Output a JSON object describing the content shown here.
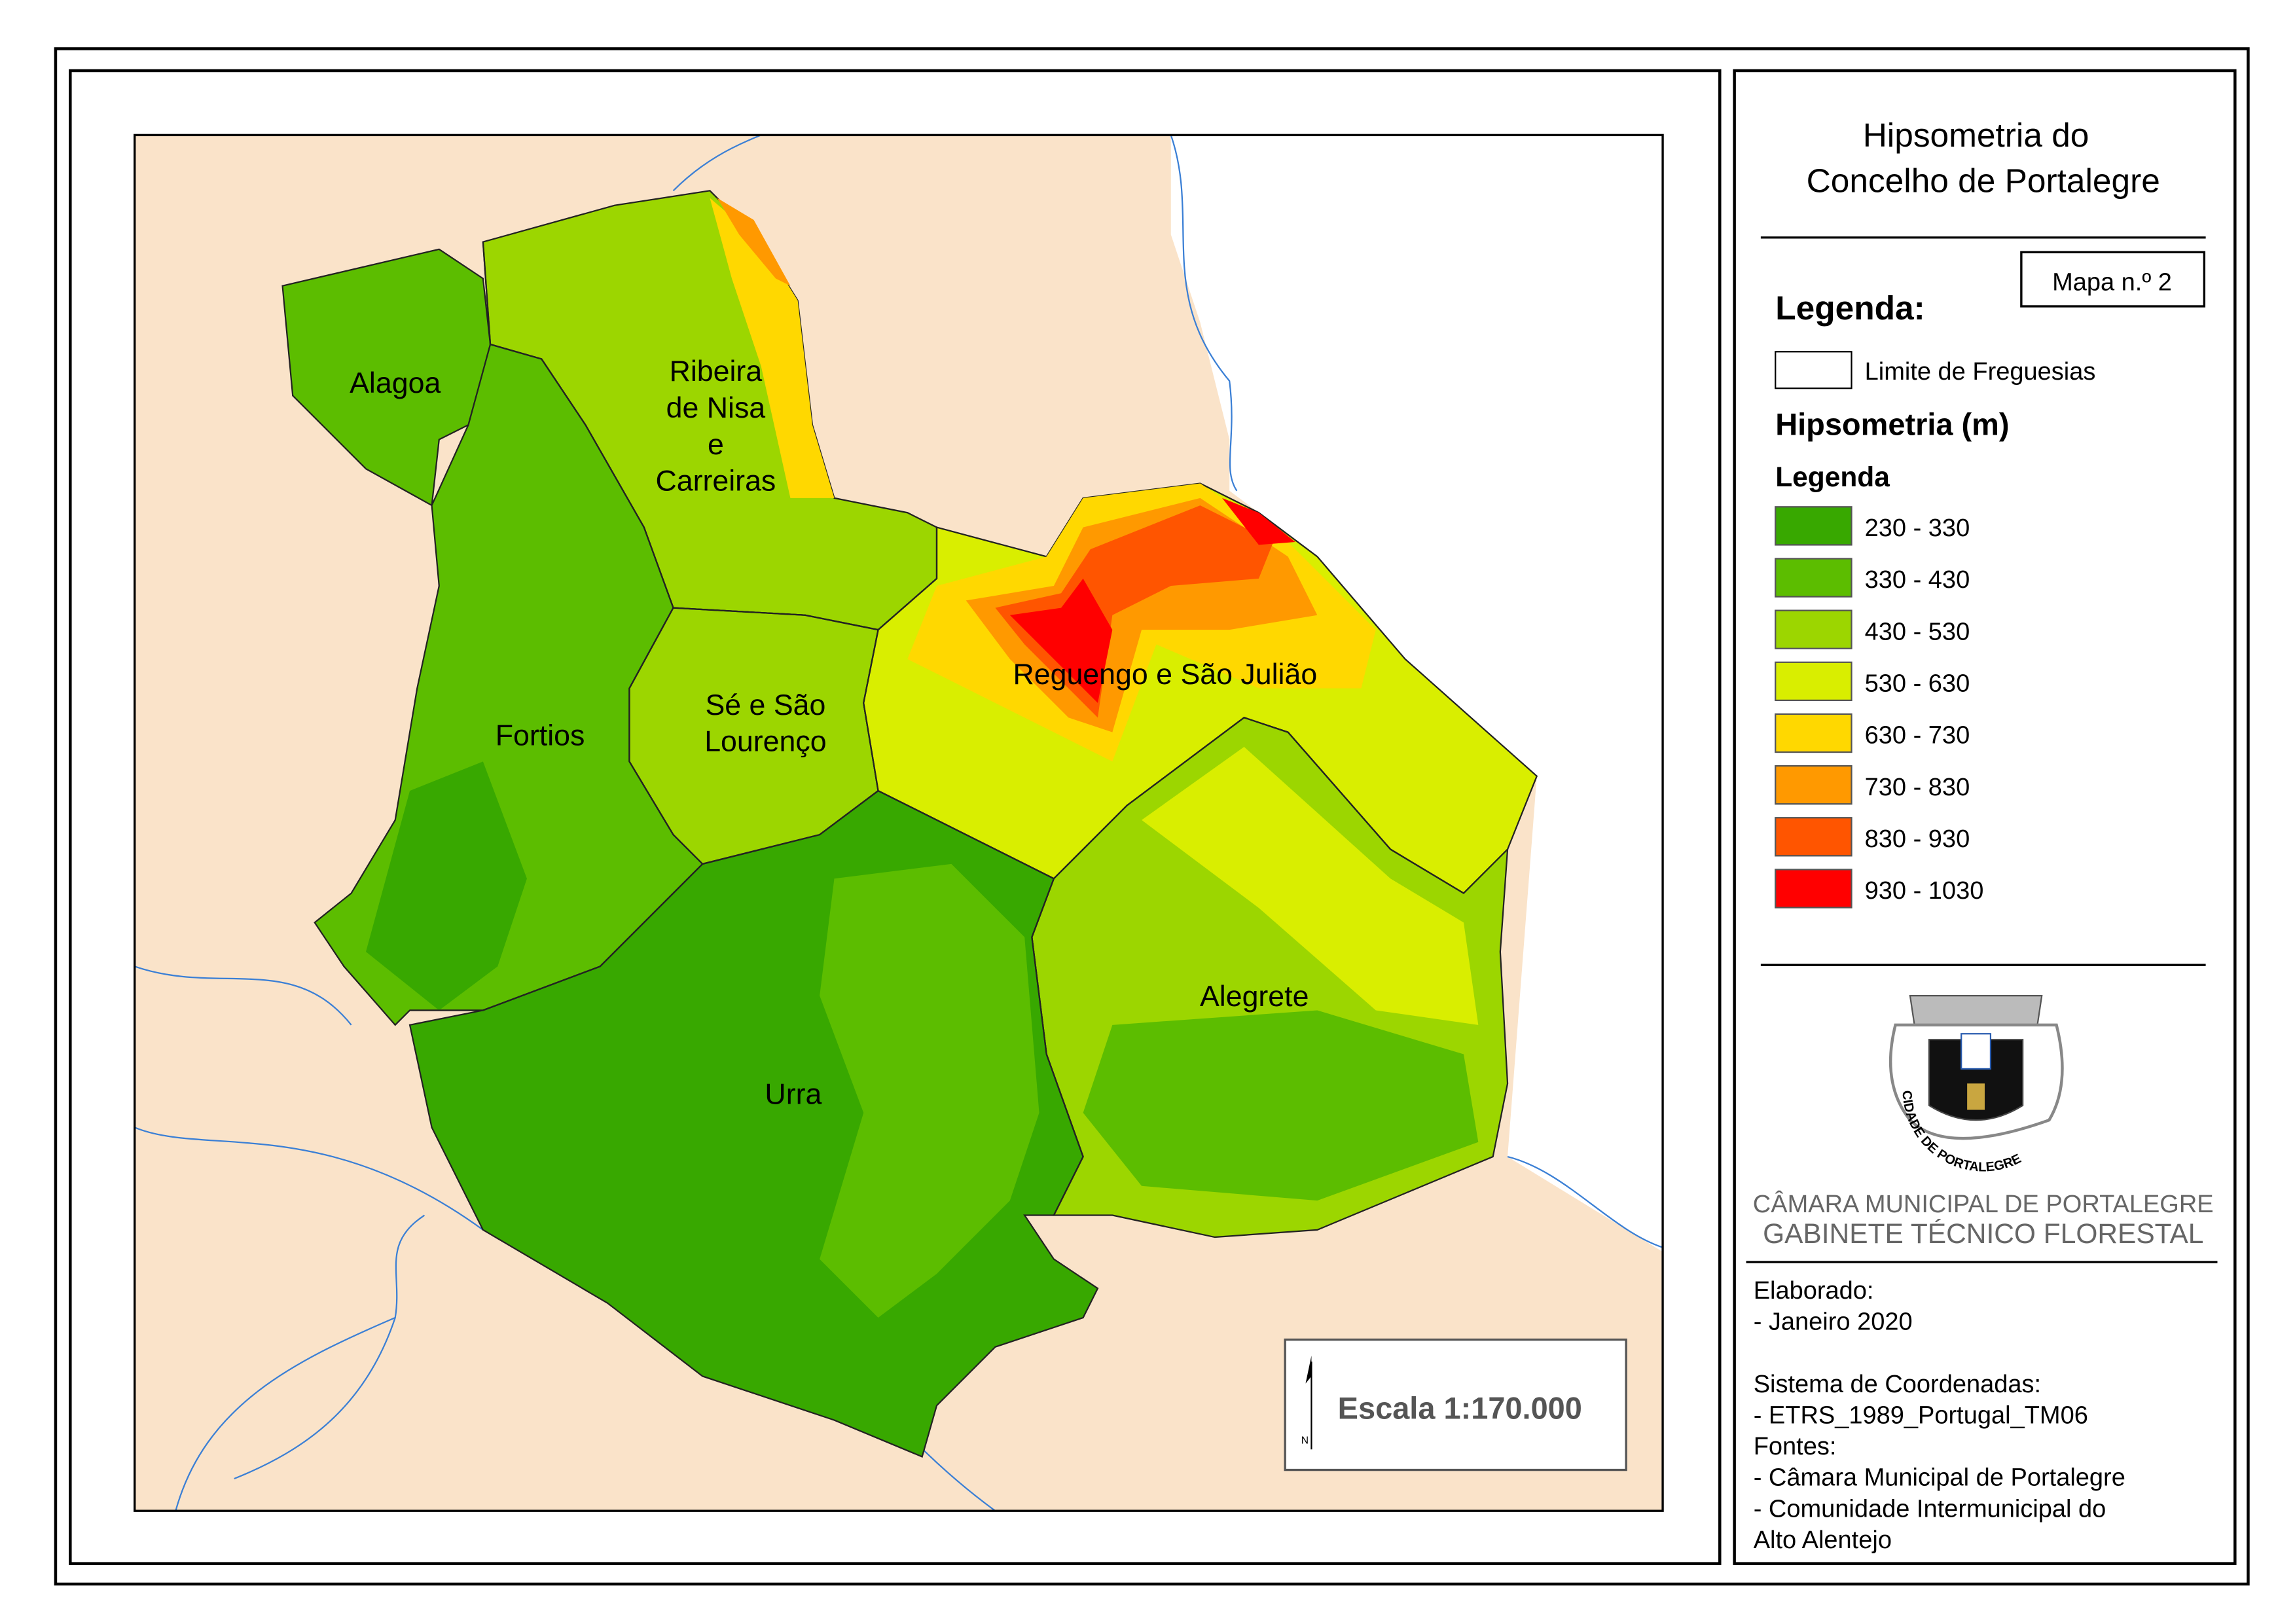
{
  "title_lines": [
    "Hipsometria do",
    "Concelho de Portalegre"
  ],
  "map_number": "Mapa n.º 2",
  "legend": {
    "heading": "Legenda:",
    "boundary_label": "Limite de Freguesias",
    "hypsometry_title": "Hipsometria (m)",
    "subheading": "Legenda",
    "classes": [
      {
        "label": "230 - 330",
        "color": "#38a800"
      },
      {
        "label": "330 - 430",
        "color": "#5cbd00"
      },
      {
        "label": "430 - 530",
        "color": "#9cd600"
      },
      {
        "label": "530 - 630",
        "color": "#d9ee00"
      },
      {
        "label": "630 - 730",
        "color": "#ffd800"
      },
      {
        "label": "730 - 830",
        "color": "#ff9900"
      },
      {
        "label": "830 - 930",
        "color": "#ff5500"
      },
      {
        "label": "930 - 1030",
        "color": "#ff0000"
      }
    ]
  },
  "parishes": [
    {
      "name_lines": [
        "Alagoa"
      ]
    },
    {
      "name_lines": [
        "Ribeira",
        "de Nisa",
        "e",
        "Carreiras"
      ]
    },
    {
      "name_lines": [
        "Fortios"
      ]
    },
    {
      "name_lines": [
        "Sé e São",
        "Lourenço"
      ]
    },
    {
      "name_lines": [
        "Reguengo e São Julião"
      ]
    },
    {
      "name_lines": [
        "Alegrete"
      ]
    },
    {
      "name_lines": [
        "Urra"
      ]
    }
  ],
  "scale": "Escala 1:170.000",
  "north": "N",
  "emblem_text": "CIDADE DE PORTALEGRE",
  "organization": [
    "CÂMARA MUNICIPAL DE PORTALEGRE",
    "GABINETE TÉCNICO FLORESTAL"
  ],
  "credits": [
    "Elaborado:",
    "- Janeiro 2020",
    "",
    "Sistema de Coordenadas:",
    "- ETRS_1989_Portugal_TM06",
    "Fontes:",
    "- Câmara Municipal de Portalegre",
    "- Comunidade Intermunicipal do",
    "Alto Alentejo"
  ]
}
